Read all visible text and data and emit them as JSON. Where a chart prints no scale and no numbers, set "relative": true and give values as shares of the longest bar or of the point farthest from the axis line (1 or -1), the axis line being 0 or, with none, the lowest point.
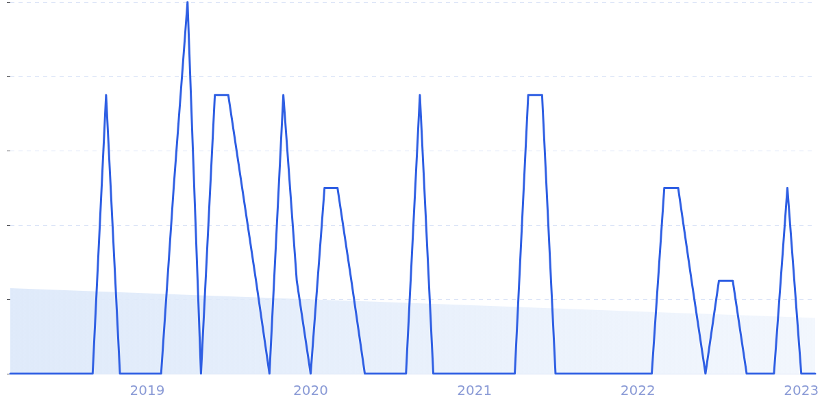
{
  "chart_data": {
    "type": "line",
    "relative": true,
    "grid": "y",
    "marker": "none",
    "line_style": "solid",
    "xlim": [
      "2018-03",
      "2023-02"
    ],
    "xticks": [
      {
        "value": "2019-01",
        "label": "2019"
      },
      {
        "value": "2020-01",
        "label": "2020"
      },
      {
        "value": "2021-01",
        "label": "2021"
      },
      {
        "value": "2022-01",
        "label": "2022"
      },
      {
        "value": "2023-01",
        "label": "2023"
      }
    ],
    "series": [
      {
        "color": "#2f5fe3",
        "x": [
          "2018-03",
          "2018-09",
          "2018-10",
          "2018-11",
          "2019-02",
          "2019-03",
          "2019-04",
          "2019-05",
          "2019-06",
          "2019-07",
          "2019-08",
          "2019-09",
          "2019-10",
          "2019-11",
          "2019-12",
          "2020-01",
          "2020-02",
          "2020-03",
          "2020-04",
          "2020-05",
          "2020-08",
          "2020-09",
          "2020-10",
          "2021-04",
          "2021-05",
          "2021-06",
          "2021-07",
          "2022-02",
          "2022-03",
          "2022-04",
          "2022-05",
          "2022-06",
          "2022-07",
          "2022-08",
          "2022-09",
          "2022-11",
          "2022-12",
          "2023-01",
          "2023-02"
        ],
        "values": [
          0,
          0,
          0.75,
          0,
          0,
          0.5,
          1,
          0,
          0.75,
          0.75,
          0.5,
          0.25,
          0,
          0.75,
          0.25,
          0,
          0.5,
          0.5,
          0.25,
          0,
          0,
          0.75,
          0,
          0,
          0.75,
          0.75,
          0,
          0,
          0.5,
          0.5,
          0.25,
          0,
          0.25,
          0.25,
          0,
          0,
          0.5,
          0,
          0
        ]
      },
      {
        "type": "area",
        "color": "#dfeafa",
        "x": [
          "2018-03",
          "2023-02"
        ],
        "values": [
          0.23,
          0.15
        ]
      }
    ]
  }
}
